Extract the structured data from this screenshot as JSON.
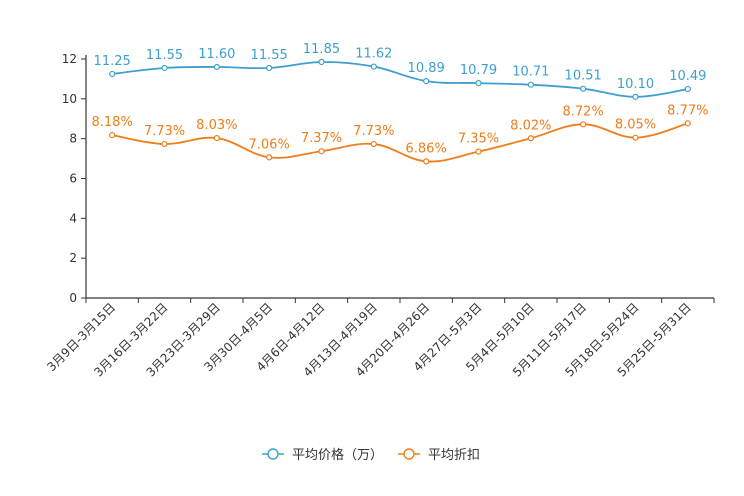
{
  "chart_data": {
    "type": "line",
    "categories": [
      "3月9日-3月15日",
      "3月16日-3月22日",
      "3月23日-3月29日",
      "3月30日-4月5日",
      "4月6日-4月12日",
      "4月13日-4月19日",
      "4月20日-4月26日",
      "4月27日-5月3日",
      "5月4日-5月10日",
      "5月11日-5月17日",
      "5月18日-5月24日",
      "5月25日-5月31日"
    ],
    "ylim": [
      0,
      12
    ],
    "yticks": [
      0,
      2,
      4,
      6,
      8,
      10,
      12
    ],
    "series": [
      {
        "name": "平均价格（万）",
        "color": "#3d9fd0",
        "values": [
          11.25,
          11.55,
          11.6,
          11.55,
          11.85,
          11.62,
          10.89,
          10.79,
          10.71,
          10.51,
          10.1,
          10.49
        ],
        "labels": [
          "11.25",
          "11.55",
          "11.60",
          "11.55",
          "11.85",
          "11.62",
          "10.89",
          "10.79",
          "10.71",
          "10.51",
          "10.10",
          "10.49"
        ]
      },
      {
        "name": "平均折扣",
        "color": "#ef7d1a",
        "values": [
          8.18,
          7.73,
          8.03,
          7.06,
          7.37,
          7.73,
          6.86,
          7.35,
          8.02,
          8.72,
          8.05,
          8.77
        ],
        "labels": [
          "8.18%",
          "7.73%",
          "8.03%",
          "7.06%",
          "7.37%",
          "7.73%",
          "6.86%",
          "7.35%",
          "8.02%",
          "8.72%",
          "8.05%",
          "8.77%"
        ]
      }
    ],
    "legend_position": "bottom-center",
    "title": "",
    "xlabel": "",
    "ylabel": ""
  }
}
